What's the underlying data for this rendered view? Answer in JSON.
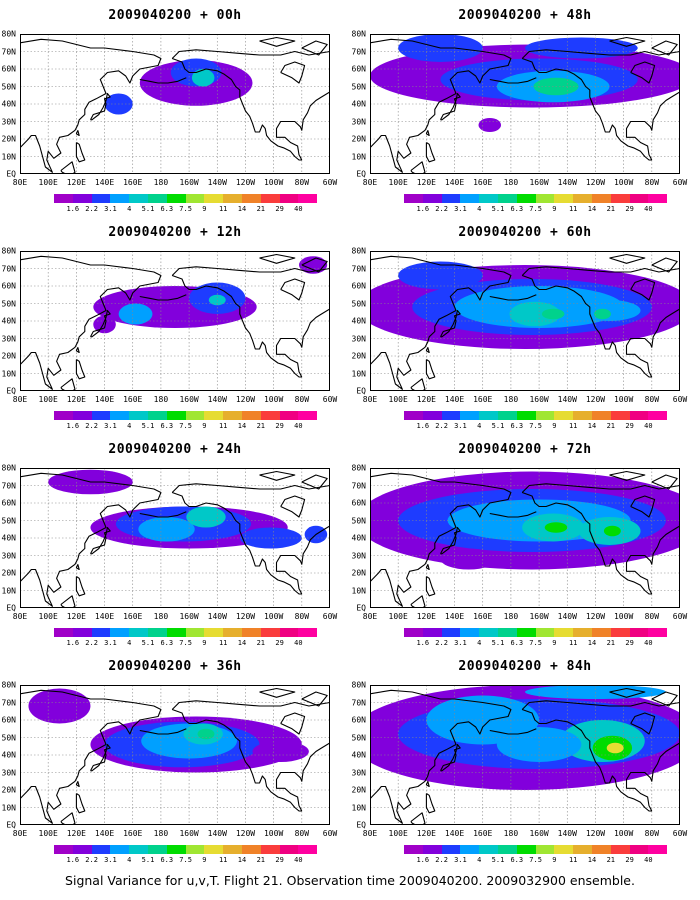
{
  "caption": "Signal Variance for u,v,T. Flight 21. Observation time 2009040200. 2009032900 ensemble.",
  "map": {
    "longitude_labels": [
      "80E",
      "100E",
      "120E",
      "140E",
      "160E",
      "180",
      "160W",
      "140W",
      "120W",
      "100W",
      "80W",
      "60W"
    ],
    "latitude_labels": [
      "80N",
      "70N",
      "60N",
      "50N",
      "40N",
      "30N",
      "20N",
      "10N",
      "EQ"
    ],
    "grid": true,
    "coastlines": true
  },
  "colorbar": {
    "labels": [
      "1.6",
      "2.2",
      "3.1",
      "4",
      "5.1",
      "6.3",
      "7.5",
      "9",
      "11",
      "14",
      "21",
      "29",
      "40"
    ],
    "colors": [
      "#a000c8",
      "#8200dc",
      "#1e3cff",
      "#00a0ff",
      "#00c8c8",
      "#00d28c",
      "#00dc00",
      "#a0e632",
      "#e6dc32",
      "#e6af2d",
      "#f08228",
      "#fa3c3c",
      "#f00082",
      "#ff00a0"
    ]
  },
  "panels": [
    {
      "title": "2009040200 + 00h",
      "column": "left",
      "row": 0,
      "forecast_hour": 0
    },
    {
      "title": "2009040200 + 12h",
      "column": "left",
      "row": 1,
      "forecast_hour": 12
    },
    {
      "title": "2009040200 + 24h",
      "column": "left",
      "row": 2,
      "forecast_hour": 24
    },
    {
      "title": "2009040200 + 36h",
      "column": "left",
      "row": 3,
      "forecast_hour": 36
    },
    {
      "title": "2009040200 + 48h",
      "column": "right",
      "row": 0,
      "forecast_hour": 48
    },
    {
      "title": "2009040200 + 60h",
      "column": "right",
      "row": 1,
      "forecast_hour": 60
    },
    {
      "title": "2009040200 + 72h",
      "column": "right",
      "row": 2,
      "forecast_hour": 72
    },
    {
      "title": "2009040200 + 84h",
      "column": "right",
      "row": 3,
      "forecast_hour": 84
    }
  ]
}
